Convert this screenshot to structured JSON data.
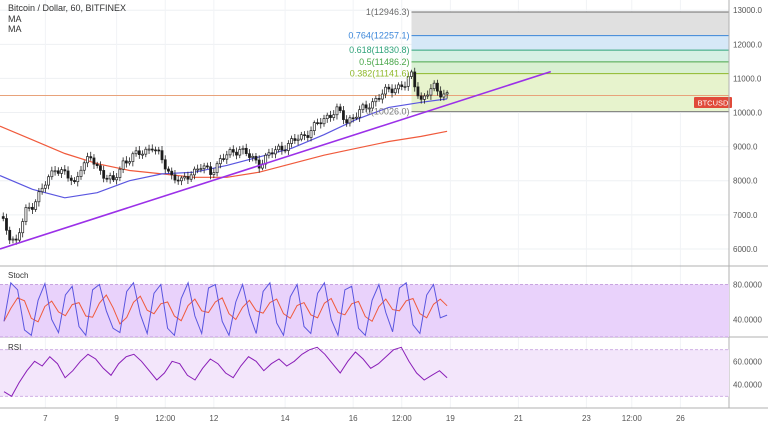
{
  "header": {
    "title": "Bitcoin / Dollar, 60, BITFINEX",
    "indicator1": "MA",
    "indicator2": "MA"
  },
  "colors": {
    "up_candle": "#ffffff",
    "down_candle": "#1a1a1a",
    "ma_fast": "#5a56e0",
    "ma_slow": "#f05a3c",
    "trendline": "#9b30e8",
    "stoch_k": "#5a56e0",
    "stoch_d": "#f05a3c",
    "rsi_line": "#8a1fb8",
    "price_tag": "#e04a3a"
  },
  "chart_data": [
    {
      "type": "candlestick",
      "title": "Bitcoin / Dollar, 60, BITFINEX",
      "symbol": "BTCUSD",
      "current_price": 10500,
      "ylim": [
        5500,
        13300
      ],
      "y_ticks": [
        6000,
        7000,
        8000,
        9000,
        10000,
        11000,
        12000,
        13000
      ],
      "y_tick_labels": [
        "6000.0",
        "7000.0",
        "8000.0",
        "9000.0",
        "10000.0",
        "11000.0",
        "12000.0",
        "13000.0"
      ],
      "x_index_range": [
        0,
        225
      ],
      "x_ticks": [
        {
          "label": "7",
          "index": 14
        },
        {
          "label": "9",
          "index": 36
        },
        {
          "label": "12:00",
          "index": 51
        },
        {
          "label": "12",
          "index": 66
        },
        {
          "label": "14",
          "index": 88
        },
        {
          "label": "16",
          "index": 109
        },
        {
          "label": "12:00",
          "index": 124
        },
        {
          "label": "19",
          "index": 139
        },
        {
          "label": "21",
          "index": 160
        },
        {
          "label": "23",
          "index": 181
        },
        {
          "label": "12:00",
          "index": 195
        },
        {
          "label": "26",
          "index": 210
        }
      ],
      "price_path": [
        [
          0,
          6950
        ],
        [
          3,
          6400
        ],
        [
          5,
          6200
        ],
        [
          8,
          7100
        ],
        [
          10,
          7300
        ],
        [
          12,
          7600
        ],
        [
          15,
          8050
        ],
        [
          17,
          8400
        ],
        [
          20,
          8200
        ],
        [
          23,
          7900
        ],
        [
          25,
          8450
        ],
        [
          28,
          8650
        ],
        [
          30,
          8400
        ],
        [
          33,
          8100
        ],
        [
          35,
          7950
        ],
        [
          38,
          8550
        ],
        [
          41,
          8700
        ],
        [
          44,
          8850
        ],
        [
          47,
          9000
        ],
        [
          50,
          8600
        ],
        [
          53,
          8150
        ],
        [
          56,
          7950
        ],
        [
          59,
          8250
        ],
        [
          62,
          8400
        ],
        [
          65,
          8250
        ],
        [
          68,
          8600
        ],
        [
          71,
          8800
        ],
        [
          74,
          8950
        ],
        [
          77,
          8700
        ],
        [
          80,
          8500
        ],
        [
          83,
          8750
        ],
        [
          86,
          8950
        ],
        [
          89,
          9050
        ],
        [
          92,
          9250
        ],
        [
          95,
          9400
        ],
        [
          98,
          9650
        ],
        [
          101,
          9900
        ],
        [
          104,
          10050
        ],
        [
          107,
          9750
        ],
        [
          110,
          9950
        ],
        [
          113,
          10150
        ],
        [
          116,
          10400
        ],
        [
          119,
          10600
        ],
        [
          122,
          10750
        ],
        [
          125,
          10800
        ],
        [
          127,
          11100
        ],
        [
          128,
          10850
        ],
        [
          130,
          10350
        ],
        [
          132,
          10550
        ],
        [
          134,
          10750
        ],
        [
          136,
          10600
        ],
        [
          138,
          10500
        ]
      ],
      "fibonacci": {
        "x_start_index": 127,
        "levels": [
          {
            "ratio": "1",
            "value": 12946.3,
            "label": "1(12946.3)",
            "color": "#6b6b6b",
            "fill": "#e0e0e0"
          },
          {
            "ratio": "0.764",
            "value": 12257.1,
            "label": "0.764(12257.1)",
            "color": "#3a86d9",
            "fill": "#d6e8f7"
          },
          {
            "ratio": "0.618",
            "value": 11830.8,
            "label": "0.618(11830.8)",
            "color": "#2fa37a",
            "fill": "#d6f0e4"
          },
          {
            "ratio": "0.5",
            "value": 11486.2,
            "label": "0.5(11486.2)",
            "color": "#4aa64a",
            "fill": "#d9f0d2"
          },
          {
            "ratio": "0.382",
            "value": 11141.6,
            "label": "0.382(11141.6)",
            "color": "#8fb82a",
            "fill": "#e7f3cd"
          },
          {
            "ratio": "0",
            "value": 10026.0,
            "label": "0(10026.0)",
            "color": "#7a7a7a",
            "fill": "#edf6dc"
          }
        ]
      },
      "trendline": {
        "x1_index": 0,
        "y1": 6000,
        "x2_index": 170,
        "y2": 11200
      },
      "ma_fast": [
        [
          0,
          8150
        ],
        [
          10,
          7750
        ],
        [
          20,
          7500
        ],
        [
          30,
          7650
        ],
        [
          40,
          8000
        ],
        [
          50,
          8200
        ],
        [
          60,
          8250
        ],
        [
          70,
          8450
        ],
        [
          80,
          8700
        ],
        [
          90,
          8950
        ],
        [
          100,
          9350
        ],
        [
          110,
          9800
        ],
        [
          120,
          10150
        ],
        [
          130,
          10300
        ],
        [
          138,
          10400
        ]
      ],
      "ma_slow": [
        [
          0,
          9600
        ],
        [
          10,
          9200
        ],
        [
          20,
          8800
        ],
        [
          30,
          8500
        ],
        [
          40,
          8300
        ],
        [
          50,
          8200
        ],
        [
          60,
          8100
        ],
        [
          70,
          8100
        ],
        [
          80,
          8250
        ],
        [
          90,
          8500
        ],
        [
          100,
          8750
        ],
        [
          110,
          8950
        ],
        [
          120,
          9150
        ],
        [
          130,
          9300
        ],
        [
          138,
          9450
        ]
      ]
    },
    {
      "type": "line",
      "title": "Stoch",
      "ylim": [
        20,
        100
      ],
      "y_ticks": [
        40,
        80
      ],
      "y_tick_labels": [
        "40.0000",
        "80.0000"
      ],
      "band": [
        20,
        80
      ],
      "k_values": [
        38,
        82,
        74,
        28,
        22,
        62,
        81,
        40,
        25,
        68,
        78,
        32,
        22,
        74,
        80,
        50,
        30,
        25,
        72,
        82,
        46,
        24,
        70,
        80,
        30,
        22,
        64,
        82,
        44,
        24,
        76,
        80,
        38,
        22,
        60,
        80,
        46,
        24,
        72,
        82,
        36,
        22,
        66,
        80,
        32,
        24,
        70,
        82,
        40,
        22,
        74,
        78,
        30,
        22,
        62,
        80,
        48,
        26,
        76,
        82,
        34,
        24,
        68,
        80,
        42,
        45
      ]
    },
    {
      "type": "line",
      "title": "RSI",
      "ylim": [
        20,
        80
      ],
      "y_ticks": [
        40,
        60
      ],
      "y_tick_labels": [
        "40.0000",
        "60.0000"
      ],
      "band": [
        30,
        70
      ],
      "values": [
        34,
        30,
        42,
        52,
        60,
        56,
        64,
        58,
        46,
        52,
        60,
        66,
        62,
        54,
        48,
        58,
        64,
        66,
        60,
        52,
        44,
        50,
        60,
        58,
        48,
        44,
        54,
        62,
        58,
        50,
        46,
        56,
        64,
        60,
        52,
        58,
        62,
        56,
        60,
        66,
        70,
        72,
        66,
        58,
        50,
        60,
        68,
        62,
        54,
        58,
        64,
        70,
        72,
        60,
        50,
        44,
        48,
        52,
        46
      ]
    }
  ]
}
